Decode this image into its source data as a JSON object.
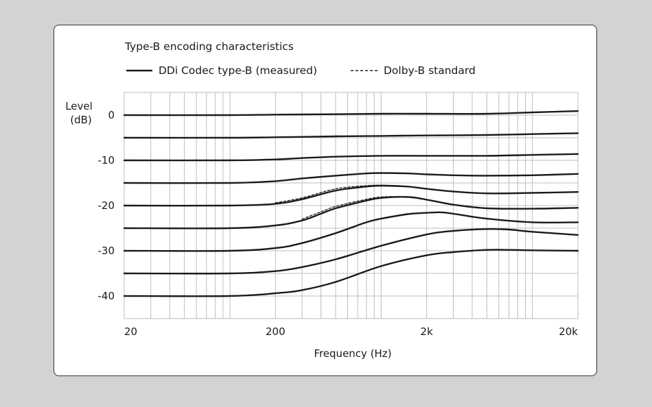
{
  "chart_data": {
    "type": "line",
    "title": "Type-B encoding characteristics",
    "xlabel": "Frequency (Hz)",
    "ylabel": [
      "Level",
      "(dB)"
    ],
    "x_scale": "log",
    "xlim": [
      20,
      20000
    ],
    "ylim": [
      -45,
      5
    ],
    "x_ticks": [
      {
        "value": 20,
        "label": "20"
      },
      {
        "value": 200,
        "label": "200"
      },
      {
        "value": 2000,
        "label": "2k"
      },
      {
        "value": 20000,
        "label": "20k"
      }
    ],
    "y_ticks": [
      {
        "value": 0,
        "label": "0"
      },
      {
        "value": -10,
        "label": "-10"
      },
      {
        "value": -20,
        "label": "-20"
      },
      {
        "value": -30,
        "label": "-30"
      },
      {
        "value": -40,
        "label": "-40"
      }
    ],
    "grid": true,
    "legend": {
      "position": "top",
      "entries": [
        {
          "label": "DDi Codec type-B (measured)",
          "style": "solid"
        },
        {
          "label": "Dolby-B standard",
          "style": "dashed"
        }
      ]
    },
    "series": [
      {
        "style": "solid",
        "x": [
          20,
          100,
          200,
          500,
          1000,
          2000,
          5000,
          10000,
          20000
        ],
        "y": [
          0,
          0,
          0.1,
          0.2,
          0.3,
          0.3,
          0.3,
          0.6,
          0.9
        ]
      },
      {
        "style": "solid",
        "x": [
          20,
          100,
          200,
          500,
          1000,
          2000,
          5000,
          10000,
          20000
        ],
        "y": [
          -5,
          -5,
          -4.9,
          -4.7,
          -4.6,
          -4.5,
          -4.4,
          -4.2,
          -4.0
        ]
      },
      {
        "style": "solid",
        "x": [
          20,
          100,
          200,
          300,
          500,
          1000,
          2000,
          5000,
          10000,
          20000
        ],
        "y": [
          -10,
          -10,
          -9.8,
          -9.5,
          -9.2,
          -9.0,
          -9.0,
          -9.0,
          -8.8,
          -8.6
        ]
      },
      {
        "style": "solid",
        "x": [
          20,
          100,
          200,
          300,
          500,
          800,
          1000,
          1500,
          2000,
          3000,
          5000,
          10000,
          20000
        ],
        "y": [
          -15,
          -15,
          -14.6,
          -14.0,
          -13.4,
          -12.9,
          -12.8,
          -12.9,
          -13.1,
          -13.3,
          -13.4,
          -13.3,
          -13.0
        ]
      },
      {
        "style": "solid",
        "x": [
          20,
          100,
          200,
          300,
          500,
          800,
          1000,
          1500,
          2000,
          3000,
          5000,
          10000,
          20000
        ],
        "y": [
          -20,
          -20,
          -19.6,
          -18.6,
          -16.7,
          -15.8,
          -15.6,
          -15.8,
          -16.3,
          -16.9,
          -17.3,
          -17.2,
          -17.0
        ]
      },
      {
        "style": "solid",
        "x": [
          20,
          100,
          200,
          300,
          400,
          500,
          800,
          1000,
          1500,
          2000,
          3000,
          5000,
          10000,
          20000
        ],
        "y": [
          -25,
          -25,
          -24.4,
          -23.3,
          -21.8,
          -20.6,
          -18.9,
          -18.3,
          -18.1,
          -18.7,
          -19.8,
          -20.6,
          -20.7,
          -20.5
        ]
      },
      {
        "style": "solid",
        "x": [
          20,
          100,
          200,
          300,
          500,
          800,
          1000,
          1500,
          2000,
          2500,
          3000,
          5000,
          10000,
          20000
        ],
        "y": [
          -30,
          -30,
          -29.4,
          -28.3,
          -26.1,
          -23.7,
          -22.9,
          -21.9,
          -21.6,
          -21.5,
          -21.8,
          -22.9,
          -23.7,
          -23.7
        ]
      },
      {
        "style": "solid",
        "x": [
          20,
          100,
          200,
          300,
          500,
          1000,
          2000,
          3000,
          5000,
          7000,
          10000,
          20000
        ],
        "y": [
          -35,
          -35,
          -34.5,
          -33.6,
          -31.9,
          -28.9,
          -26.4,
          -25.6,
          -25.2,
          -25.3,
          -25.8,
          -26.5
        ]
      },
      {
        "style": "solid",
        "x": [
          20,
          100,
          200,
          300,
          500,
          1000,
          2000,
          3000,
          5000,
          7000,
          10000,
          20000
        ],
        "y": [
          -40,
          -40,
          -39.4,
          -38.7,
          -36.9,
          -33.4,
          -31.0,
          -30.3,
          -29.8,
          -29.8,
          -29.9,
          -30.0
        ]
      },
      {
        "style": "dashed",
        "x": [
          200,
          300,
          500,
          800,
          1000,
          1300
        ],
        "y": [
          -19.4,
          -18.3,
          -16.3,
          -15.6,
          -15.5,
          -15.6
        ]
      },
      {
        "style": "dashed",
        "x": [
          300,
          400,
          500,
          800,
          1000,
          1300
        ],
        "y": [
          -23.0,
          -21.4,
          -20.2,
          -18.6,
          -18.1,
          -18.0
        ]
      }
    ]
  }
}
